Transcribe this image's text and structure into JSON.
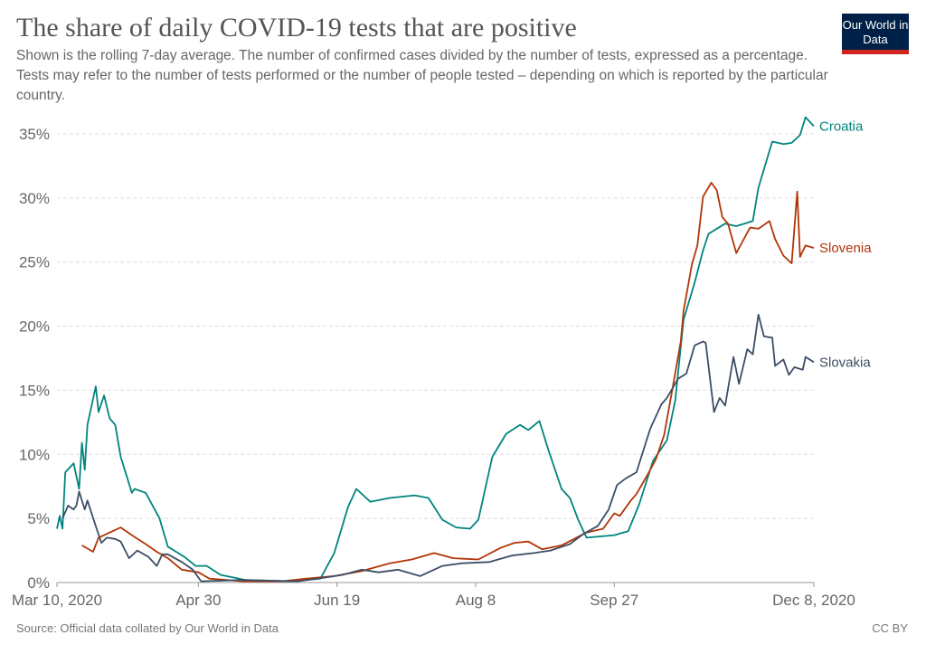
{
  "header": {
    "title": "The share of daily COVID-19 tests that are positive",
    "subtitle": "Shown is the rolling 7-day average. The number of confirmed cases divided by the number of tests, expressed as a percentage. Tests may refer to the number of tests performed or the number of people tested – depending on which is reported by the particular country.",
    "logo": "Our World in Data"
  },
  "footer": {
    "source": "Source: Official data collated by Our World in Data",
    "license": "CC BY"
  },
  "chart_data": {
    "type": "line",
    "xlim": [
      "2020-03-10",
      "2020-12-08"
    ],
    "ylim": [
      0,
      35
    ],
    "y_ticks": [
      0,
      5,
      10,
      15,
      20,
      25,
      30,
      35
    ],
    "y_tick_labels": [
      "0%",
      "5%",
      "10%",
      "15%",
      "20%",
      "25%",
      "30%",
      "35%"
    ],
    "x_ticks": [
      "2020-03-10",
      "2020-04-30",
      "2020-06-19",
      "2020-08-08",
      "2020-09-27",
      "2020-12-08"
    ],
    "x_tick_labels": [
      "Mar 10, 2020",
      "Apr 30",
      "Jun 19",
      "Aug 8",
      "Sep 27",
      "Dec 8, 2020"
    ],
    "grid": "horizontal dashed",
    "legend": "inline labels at line ends (right)",
    "series": [
      {
        "name": "Croatia",
        "color": "#00847e",
        "points": [
          [
            "2020-03-10",
            4.2
          ],
          [
            "2020-03-11",
            5.2
          ],
          [
            "2020-03-12",
            4.2
          ],
          [
            "2020-03-13",
            8.6
          ],
          [
            "2020-03-16",
            9.3
          ],
          [
            "2020-03-18",
            7.3
          ],
          [
            "2020-03-19",
            10.9
          ],
          [
            "2020-03-20",
            8.8
          ],
          [
            "2020-03-21",
            12.3
          ],
          [
            "2020-03-24",
            15.3
          ],
          [
            "2020-03-25",
            13.3
          ],
          [
            "2020-03-27",
            14.6
          ],
          [
            "2020-03-29",
            12.8
          ],
          [
            "2020-03-31",
            12.3
          ],
          [
            "2020-04-02",
            9.8
          ],
          [
            "2020-04-06",
            7.0
          ],
          [
            "2020-04-07",
            7.3
          ],
          [
            "2020-04-11",
            7.0
          ],
          [
            "2020-04-16",
            5.0
          ],
          [
            "2020-04-19",
            2.8
          ],
          [
            "2020-04-22",
            2.4
          ],
          [
            "2020-04-25",
            2.0
          ],
          [
            "2020-04-29",
            1.3
          ],
          [
            "2020-05-03",
            1.3
          ],
          [
            "2020-05-08",
            0.6
          ],
          [
            "2020-05-17",
            0.2
          ],
          [
            "2020-06-02",
            0.1
          ],
          [
            "2020-06-13",
            0.3
          ],
          [
            "2020-06-18",
            2.3
          ],
          [
            "2020-06-23",
            5.9
          ],
          [
            "2020-06-26",
            7.3
          ],
          [
            "2020-07-01",
            6.3
          ],
          [
            "2020-07-08",
            6.6
          ],
          [
            "2020-07-17",
            6.8
          ],
          [
            "2020-07-22",
            6.6
          ],
          [
            "2020-07-27",
            4.9
          ],
          [
            "2020-08-01",
            4.3
          ],
          [
            "2020-08-06",
            4.2
          ],
          [
            "2020-08-09",
            4.9
          ],
          [
            "2020-08-14",
            9.8
          ],
          [
            "2020-08-19",
            11.6
          ],
          [
            "2020-08-24",
            12.3
          ],
          [
            "2020-08-27",
            11.9
          ],
          [
            "2020-08-31",
            12.6
          ],
          [
            "2020-09-03",
            10.5
          ],
          [
            "2020-09-08",
            7.3
          ],
          [
            "2020-09-11",
            6.6
          ],
          [
            "2020-09-14",
            4.9
          ],
          [
            "2020-09-17",
            3.5
          ],
          [
            "2020-09-27",
            3.7
          ],
          [
            "2020-10-02",
            4.0
          ],
          [
            "2020-10-06",
            6.1
          ],
          [
            "2020-10-11",
            9.5
          ],
          [
            "2020-10-16",
            11.1
          ],
          [
            "2020-10-19",
            14.2
          ],
          [
            "2020-10-22",
            20.5
          ],
          [
            "2020-10-26",
            23.4
          ],
          [
            "2020-10-29",
            25.9
          ],
          [
            "2020-10-31",
            27.2
          ],
          [
            "2020-11-06",
            28.0
          ],
          [
            "2020-11-10",
            27.8
          ],
          [
            "2020-11-16",
            28.2
          ],
          [
            "2020-11-18",
            30.8
          ],
          [
            "2020-11-23",
            34.4
          ],
          [
            "2020-11-27",
            34.2
          ],
          [
            "2020-11-30",
            34.3
          ],
          [
            "2020-12-03",
            34.9
          ],
          [
            "2020-12-05",
            36.3
          ],
          [
            "2020-12-08",
            35.6
          ]
        ]
      },
      {
        "name": "Slovenia",
        "color": "#b13507",
        "points": [
          [
            "2020-03-19",
            2.9
          ],
          [
            "2020-03-23",
            2.4
          ],
          [
            "2020-03-25",
            3.5
          ],
          [
            "2020-03-30",
            4.0
          ],
          [
            "2020-04-02",
            4.3
          ],
          [
            "2020-04-06",
            3.7
          ],
          [
            "2020-04-11",
            3.0
          ],
          [
            "2020-04-15",
            2.4
          ],
          [
            "2020-04-19",
            1.9
          ],
          [
            "2020-04-24",
            1.0
          ],
          [
            "2020-04-30",
            0.8
          ],
          [
            "2020-05-04",
            0.3
          ],
          [
            "2020-05-16",
            0.1
          ],
          [
            "2020-05-30",
            0.1
          ],
          [
            "2020-06-08",
            0.3
          ],
          [
            "2020-06-18",
            0.5
          ],
          [
            "2020-06-28",
            0.9
          ],
          [
            "2020-07-08",
            1.5
          ],
          [
            "2020-07-16",
            1.8
          ],
          [
            "2020-07-24",
            2.3
          ],
          [
            "2020-07-31",
            1.9
          ],
          [
            "2020-08-09",
            1.8
          ],
          [
            "2020-08-17",
            2.7
          ],
          [
            "2020-08-22",
            3.1
          ],
          [
            "2020-08-27",
            3.2
          ],
          [
            "2020-09-01",
            2.6
          ],
          [
            "2020-09-08",
            2.9
          ],
          [
            "2020-09-17",
            3.9
          ],
          [
            "2020-09-23",
            4.2
          ],
          [
            "2020-09-27",
            5.4
          ],
          [
            "2020-09-29",
            5.2
          ],
          [
            "2020-10-03",
            6.4
          ],
          [
            "2020-10-05",
            6.9
          ],
          [
            "2020-10-09",
            8.4
          ],
          [
            "2020-10-12",
            9.6
          ],
          [
            "2020-10-15",
            11.5
          ],
          [
            "2020-10-18",
            15.1
          ],
          [
            "2020-10-21",
            18.8
          ],
          [
            "2020-10-22",
            21.2
          ],
          [
            "2020-10-25",
            24.8
          ],
          [
            "2020-10-27",
            26.3
          ],
          [
            "2020-10-29",
            30.1
          ],
          [
            "2020-11-01",
            31.2
          ],
          [
            "2020-11-03",
            30.6
          ],
          [
            "2020-11-05",
            28.5
          ],
          [
            "2020-11-07",
            28.0
          ],
          [
            "2020-11-10",
            25.7
          ],
          [
            "2020-11-12",
            26.5
          ],
          [
            "2020-11-15",
            27.7
          ],
          [
            "2020-11-18",
            27.6
          ],
          [
            "2020-11-22",
            28.2
          ],
          [
            "2020-11-24",
            26.8
          ],
          [
            "2020-11-27",
            25.5
          ],
          [
            "2020-11-30",
            24.9
          ],
          [
            "2020-12-02",
            30.5
          ],
          [
            "2020-12-03",
            25.4
          ],
          [
            "2020-12-05",
            26.3
          ],
          [
            "2020-12-08",
            26.1
          ]
        ]
      },
      {
        "name": "Slovakia",
        "color": "#3c4e66",
        "points": [
          [
            "2020-03-12",
            5.0
          ],
          [
            "2020-03-14",
            6.0
          ],
          [
            "2020-03-16",
            5.7
          ],
          [
            "2020-03-17",
            6.0
          ],
          [
            "2020-03-18",
            7.1
          ],
          [
            "2020-03-20",
            5.7
          ],
          [
            "2020-03-21",
            6.4
          ],
          [
            "2020-03-24",
            4.4
          ],
          [
            "2020-03-26",
            3.1
          ],
          [
            "2020-03-28",
            3.5
          ],
          [
            "2020-03-31",
            3.4
          ],
          [
            "2020-04-02",
            3.2
          ],
          [
            "2020-04-05",
            1.9
          ],
          [
            "2020-04-08",
            2.5
          ],
          [
            "2020-04-12",
            2.0
          ],
          [
            "2020-04-15",
            1.3
          ],
          [
            "2020-04-17",
            2.2
          ],
          [
            "2020-04-19",
            2.2
          ],
          [
            "2020-04-24",
            1.6
          ],
          [
            "2020-04-28",
            1.0
          ],
          [
            "2020-05-01",
            0.1
          ],
          [
            "2020-05-16",
            0.2
          ],
          [
            "2020-06-05",
            0.1
          ],
          [
            "2020-06-15",
            0.4
          ],
          [
            "2020-06-21",
            0.6
          ],
          [
            "2020-06-28",
            1.0
          ],
          [
            "2020-07-04",
            0.8
          ],
          [
            "2020-07-11",
            1.0
          ],
          [
            "2020-07-19",
            0.5
          ],
          [
            "2020-07-27",
            1.3
          ],
          [
            "2020-08-03",
            1.5
          ],
          [
            "2020-08-13",
            1.6
          ],
          [
            "2020-08-21",
            2.1
          ],
          [
            "2020-08-29",
            2.3
          ],
          [
            "2020-09-04",
            2.5
          ],
          [
            "2020-09-11",
            3.0
          ],
          [
            "2020-09-16",
            3.8
          ],
          [
            "2020-09-21",
            4.4
          ],
          [
            "2020-09-25",
            5.7
          ],
          [
            "2020-09-28",
            7.6
          ],
          [
            "2020-10-01",
            8.1
          ],
          [
            "2020-10-05",
            8.6
          ],
          [
            "2020-10-10",
            12.0
          ],
          [
            "2020-10-14",
            13.9
          ],
          [
            "2020-10-16",
            14.4
          ],
          [
            "2020-10-20",
            15.9
          ],
          [
            "2020-10-23",
            16.3
          ],
          [
            "2020-10-26",
            18.5
          ],
          [
            "2020-10-29",
            18.8
          ],
          [
            "2020-10-30",
            18.7
          ],
          [
            "2020-11-02",
            13.3
          ],
          [
            "2020-11-04",
            14.4
          ],
          [
            "2020-11-06",
            13.8
          ],
          [
            "2020-11-09",
            17.6
          ],
          [
            "2020-11-11",
            15.5
          ],
          [
            "2020-11-14",
            18.2
          ],
          [
            "2020-11-16",
            17.8
          ],
          [
            "2020-11-18",
            20.9
          ],
          [
            "2020-11-20",
            19.2
          ],
          [
            "2020-11-23",
            19.1
          ],
          [
            "2020-11-24",
            16.9
          ],
          [
            "2020-11-27",
            17.4
          ],
          [
            "2020-11-29",
            16.2
          ],
          [
            "2020-12-01",
            16.8
          ],
          [
            "2020-12-04",
            16.6
          ],
          [
            "2020-12-05",
            17.6
          ],
          [
            "2020-12-08",
            17.2
          ]
        ]
      }
    ]
  }
}
